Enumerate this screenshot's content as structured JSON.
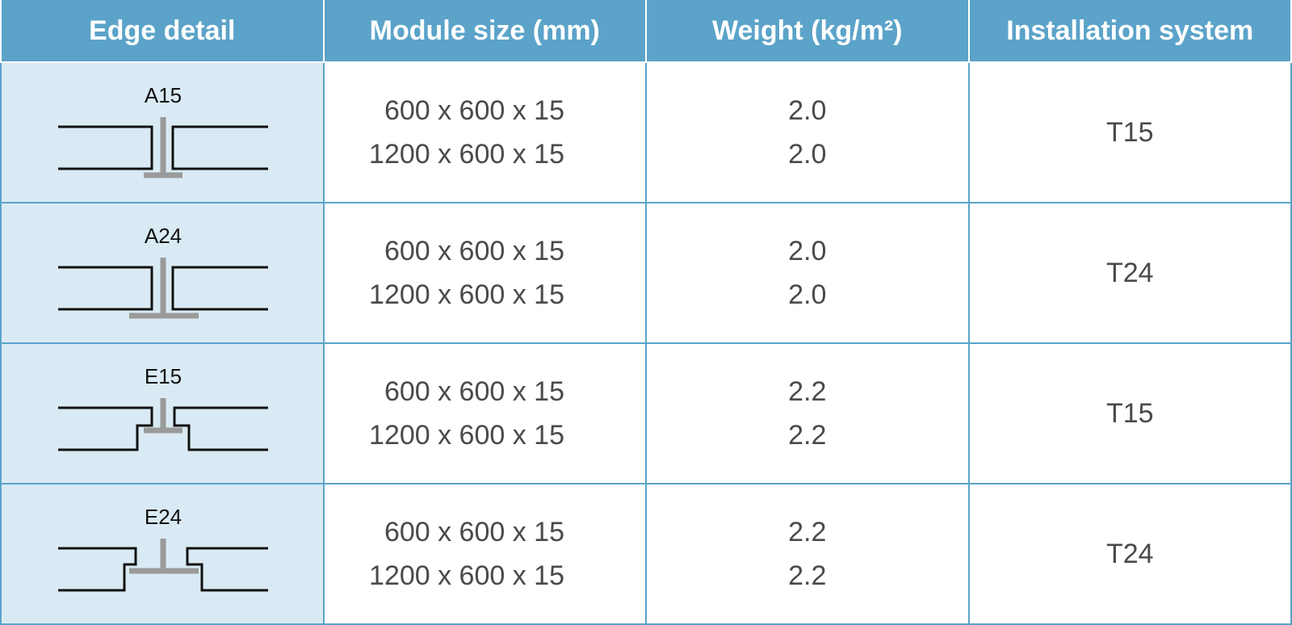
{
  "table": {
    "header": [
      "Edge detail",
      "Module size (mm)",
      "Weight (kg/m²)",
      "Installation system"
    ],
    "rows": [
      {
        "edge": "A15",
        "sizes": [
          "600 x 600 x 15",
          "1200 x 600 x 15"
        ],
        "weights": [
          "2.0",
          "2.0"
        ],
        "system": "T15"
      },
      {
        "edge": "A24",
        "sizes": [
          "600 x 600 x 15",
          "1200 x 600 x 15"
        ],
        "weights": [
          "2.0",
          "2.0"
        ],
        "system": "T24"
      },
      {
        "edge": "E15",
        "sizes": [
          "600 x 600 x 15",
          "1200 x 600 x 15"
        ],
        "weights": [
          "2.2",
          "2.2"
        ],
        "system": "T15"
      },
      {
        "edge": "E24",
        "sizes": [
          "600 x 600 x 15",
          "1200 x 600 x 15"
        ],
        "weights": [
          "2.2",
          "2.2"
        ],
        "system": "T24"
      }
    ]
  }
}
